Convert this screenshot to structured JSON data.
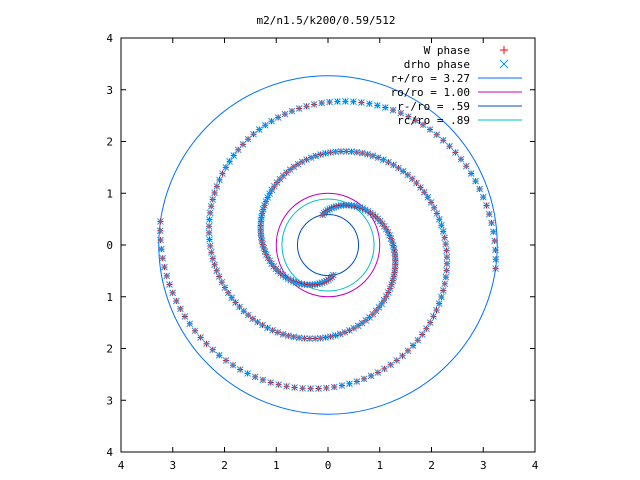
{
  "chart_data": {
    "type": "scatter",
    "title": "m2/n1.5/k200/0.59/512",
    "xlabel": "",
    "ylabel": "",
    "xlim": [
      -4,
      4
    ],
    "ylim": [
      -4,
      4
    ],
    "grid": false,
    "legend_position": "top-right",
    "x_tick_labels": [
      "4",
      "3",
      "2",
      "1",
      "0",
      "1",
      "2",
      "3",
      "4"
    ],
    "y_tick_labels": [
      "4",
      "3",
      "2",
      "1",
      "0",
      "1",
      "2",
      "3",
      "4"
    ],
    "x_ticks": [
      -4,
      -3,
      -2,
      -1,
      0,
      1,
      2,
      3,
      4
    ],
    "y_ticks": [
      -4,
      -3,
      -2,
      -1,
      0,
      1,
      2,
      3,
      4
    ],
    "point_series": [
      {
        "name": "W phase",
        "marker": "plus",
        "color": "#ff0000"
      },
      {
        "name": "drho phase",
        "marker": "cross",
        "color": "#00a0ff"
      }
    ],
    "spiral": {
      "arms": 2,
      "inner_radius": 0.59,
      "outer_radius": 3.27,
      "start_angle_deg": [
        100,
        280
      ],
      "winding_turns": 1.3
    },
    "circles": [
      {
        "name": "r+/ro = 3.27",
        "radius": 3.27,
        "color": "#0070ff"
      },
      {
        "name": "ro/ro = 1.00",
        "radius": 1.0,
        "color": "#c000c0"
      },
      {
        "name": "r-/ro = .59",
        "radius": 0.59,
        "color": "#0050c0"
      },
      {
        "name": "rc/ro = .89",
        "radius": 0.89,
        "color": "#00c0c0"
      }
    ]
  }
}
